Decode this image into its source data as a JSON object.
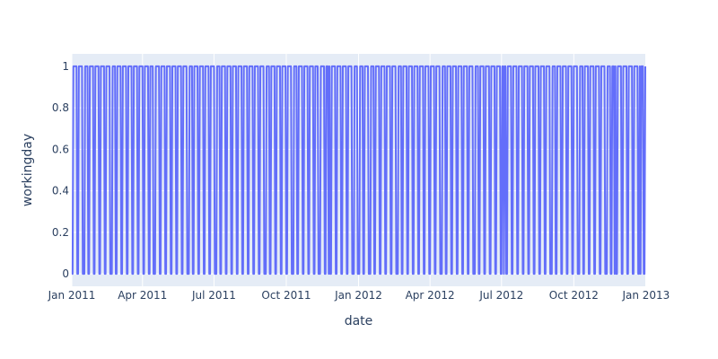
{
  "chart_data": {
    "type": "line",
    "title": "",
    "xlabel": "date",
    "ylabel": "workingday",
    "xlim": [
      "2011-01-01",
      "2012-12-31"
    ],
    "ylim": [
      -0.06,
      1.06
    ],
    "x_ticks": [
      "2011-01-01",
      "2011-04-01",
      "2011-07-01",
      "2011-10-01",
      "2012-01-01",
      "2012-04-01",
      "2012-07-01",
      "2012-10-01",
      "2013-01-01"
    ],
    "x_tick_labels": [
      "Jan 2011",
      "Apr 2011",
      "Jul 2011",
      "Oct 2011",
      "Jan 2012",
      "Apr 2012",
      "Jul 2012",
      "Oct 2012",
      "Jan 2013"
    ],
    "y_ticks": [
      0,
      0.2,
      0.4,
      0.6,
      0.8,
      1
    ],
    "y_tick_labels": [
      "0",
      "0.2",
      "0.4",
      "0.6",
      "0.8",
      "1"
    ],
    "grid": true,
    "series": [
      {
        "pattern": "Weekdays (Mon–Fri) = 1, weekends (Sat, Sun) and US federal holidays = 0, one point per day",
        "start": "2011-01-01",
        "end": "2012-12-31",
        "holidays": [
          "2011-01-17",
          "2011-02-21",
          "2011-04-15",
          "2011-05-30",
          "2011-07-04",
          "2011-09-05",
          "2011-10-10",
          "2011-11-11",
          "2011-11-24",
          "2011-12-26",
          "2012-01-02",
          "2012-01-16",
          "2012-02-20",
          "2012-04-16",
          "2012-05-28",
          "2012-07-04",
          "2012-09-03",
          "2012-10-08",
          "2012-11-12",
          "2012-11-22",
          "2012-12-25"
        ],
        "color": "#636efa"
      }
    ],
    "colors": {
      "plot_bg": "#e5ecf6",
      "paper_bg": "#ffffff",
      "text": "#2a3f5f",
      "line": "#636efa"
    }
  }
}
